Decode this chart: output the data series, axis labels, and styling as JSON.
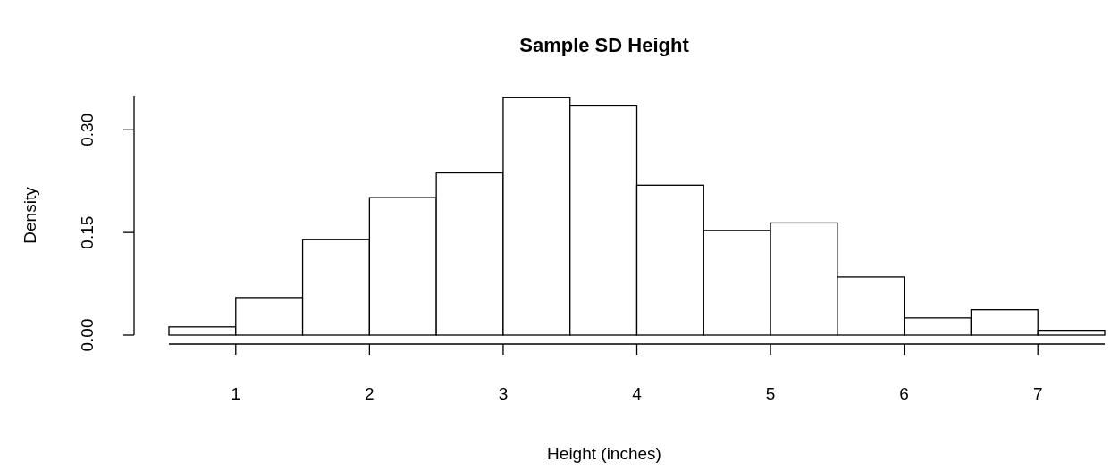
{
  "chart_data": {
    "type": "histogram",
    "title": "Sample SD Height",
    "xlabel": "Height (inches)",
    "ylabel": "Density",
    "bins": [
      0.5,
      1,
      1.5,
      2,
      2.5,
      3,
      3.5,
      4,
      4.5,
      5,
      5.5,
      6,
      6.5,
      7,
      7.5
    ],
    "values": [
      0.012,
      0.055,
      0.14,
      0.201,
      0.237,
      0.347,
      0.335,
      0.219,
      0.153,
      0.164,
      0.085,
      0.025,
      0.037,
      0.007
    ],
    "color": "#ffffff",
    "xlim": [
      0.5,
      7.5
    ],
    "xticks": [
      1,
      2,
      3,
      4,
      5,
      6,
      7
    ],
    "ylim": [
      0,
      0.35
    ],
    "yticks": [
      {
        "value": 0,
        "label": "0.00"
      },
      {
        "value": 0.15,
        "label": "0.15"
      },
      {
        "value": 0.3,
        "label": "0.30"
      }
    ],
    "grid": false
  }
}
